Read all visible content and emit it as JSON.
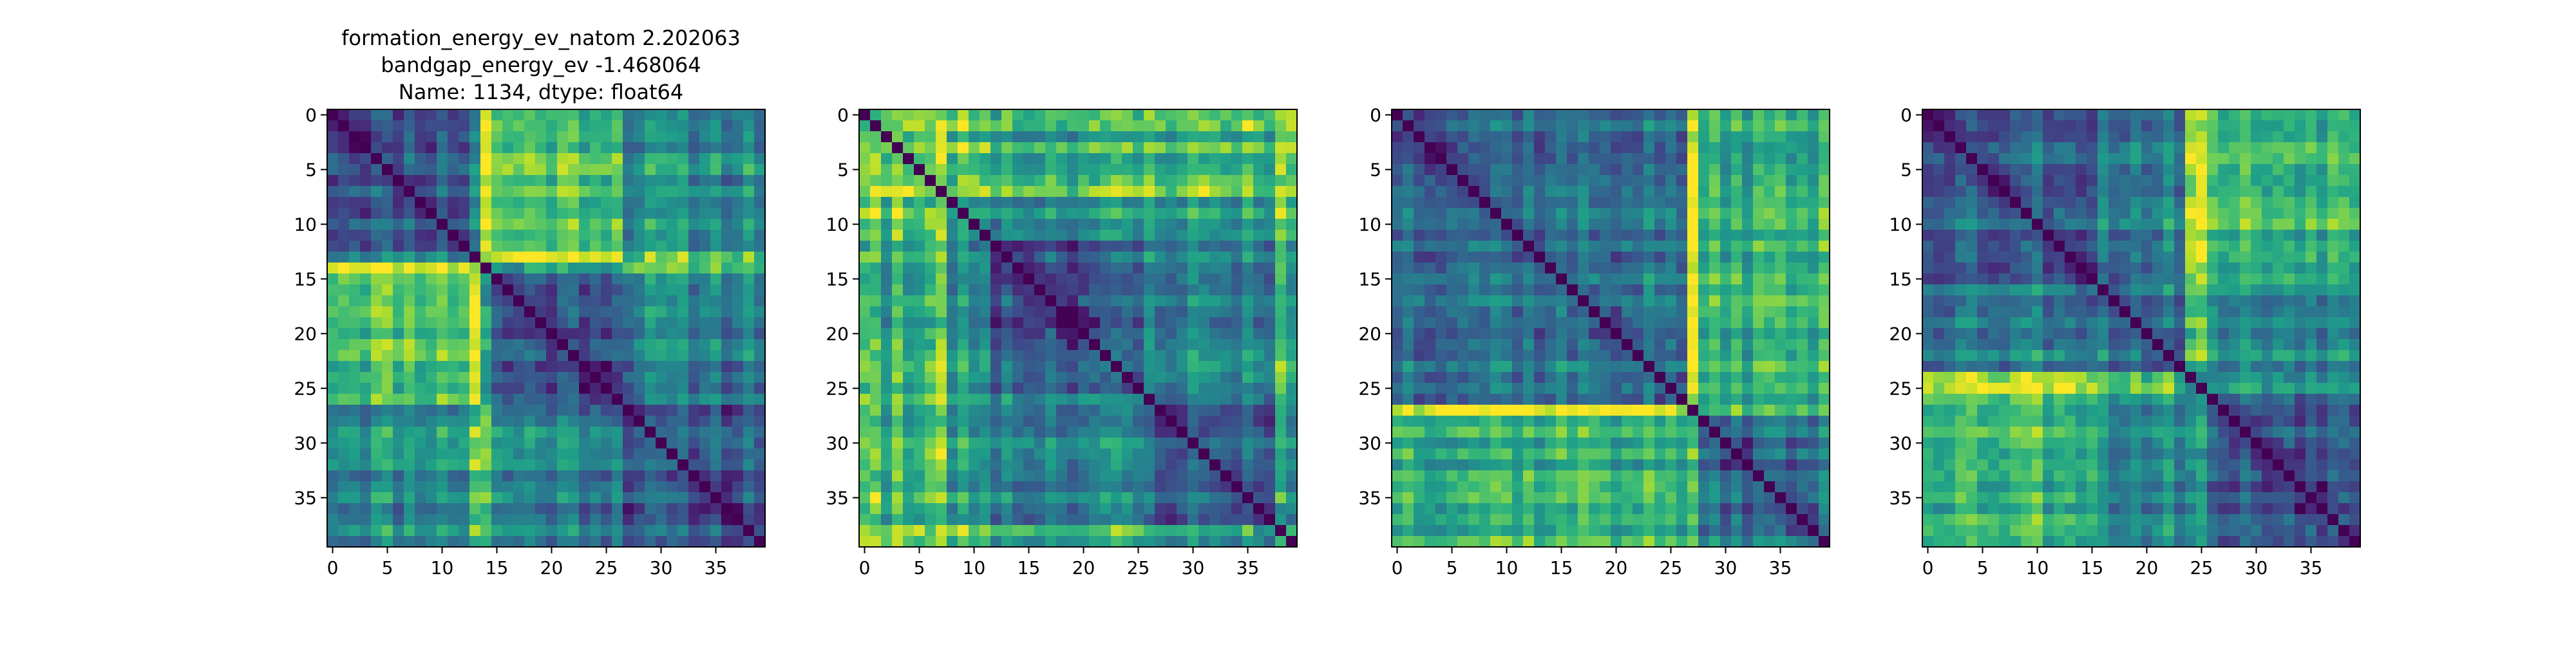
{
  "title": {
    "lines": [
      "formation_energy_ev_natom    2.202063",
      "bandgap_energy_ev           -1.468064",
      "Name: 1134, dtype: float64"
    ]
  },
  "colormap": {
    "name": "viridis",
    "stops": [
      "#440154",
      "#482878",
      "#3e4989",
      "#31688e",
      "#26828e",
      "#1f9e89",
      "#35b779",
      "#6ece58",
      "#b5de2b",
      "#fde725"
    ]
  },
  "chart_data": [
    {
      "type": "heatmap",
      "size": 40,
      "xticks": [
        0,
        5,
        10,
        15,
        20,
        25,
        30,
        35
      ],
      "yticks": [
        0,
        5,
        10,
        15,
        20,
        25,
        30,
        35
      ],
      "diagonal": 0,
      "groups": [
        [
          0,
          13
        ],
        [
          14,
          26
        ],
        [
          27,
          39
        ]
      ],
      "high_rows": [
        13,
        14
      ],
      "block_levels": [
        [
          0.3,
          0.75,
          0.5
        ],
        [
          0.75,
          0.3,
          0.45
        ],
        [
          0.5,
          0.45,
          0.3
        ]
      ],
      "seed": 11
    },
    {
      "type": "heatmap",
      "size": 40,
      "xticks": [
        0,
        5,
        10,
        15,
        20,
        25,
        30,
        35
      ],
      "yticks": [
        0,
        5,
        10,
        15,
        20,
        25,
        30,
        35
      ],
      "diagonal": 0,
      "groups": [
        [
          0,
          11
        ],
        [
          12,
          25
        ],
        [
          26,
          39
        ]
      ],
      "high_rows": [
        0,
        1,
        3,
        6,
        7,
        38
      ],
      "block_levels": [
        [
          0.6,
          0.5,
          0.55
        ],
        [
          0.5,
          0.3,
          0.45
        ],
        [
          0.55,
          0.45,
          0.35
        ]
      ],
      "seed": 23
    },
    {
      "type": "heatmap",
      "size": 40,
      "xticks": [
        0,
        5,
        10,
        15,
        20,
        25,
        30,
        35
      ],
      "yticks": [
        0,
        5,
        10,
        15,
        20,
        25,
        30,
        35
      ],
      "diagonal": 0,
      "groups": [
        [
          0,
          26
        ],
        [
          27,
          39
        ]
      ],
      "high_rows": [
        27
      ],
      "block_levels": [
        [
          0.4,
          0.65
        ],
        [
          0.65,
          0.35
        ]
      ],
      "seed": 37
    },
    {
      "type": "heatmap",
      "size": 40,
      "xticks": [
        0,
        5,
        10,
        15,
        20,
        25,
        30,
        35
      ],
      "yticks": [
        0,
        5,
        10,
        15,
        20,
        25,
        30,
        35
      ],
      "diagonal": 0,
      "groups": [
        [
          0,
          15
        ],
        [
          16,
          23
        ],
        [
          24,
          39
        ]
      ],
      "high_rows": [
        24,
        25
      ],
      "block_levels": [
        [
          0.35,
          0.45,
          0.7
        ],
        [
          0.45,
          0.4,
          0.5
        ],
        [
          0.7,
          0.5,
          0.3
        ]
      ],
      "seed": 53
    }
  ]
}
